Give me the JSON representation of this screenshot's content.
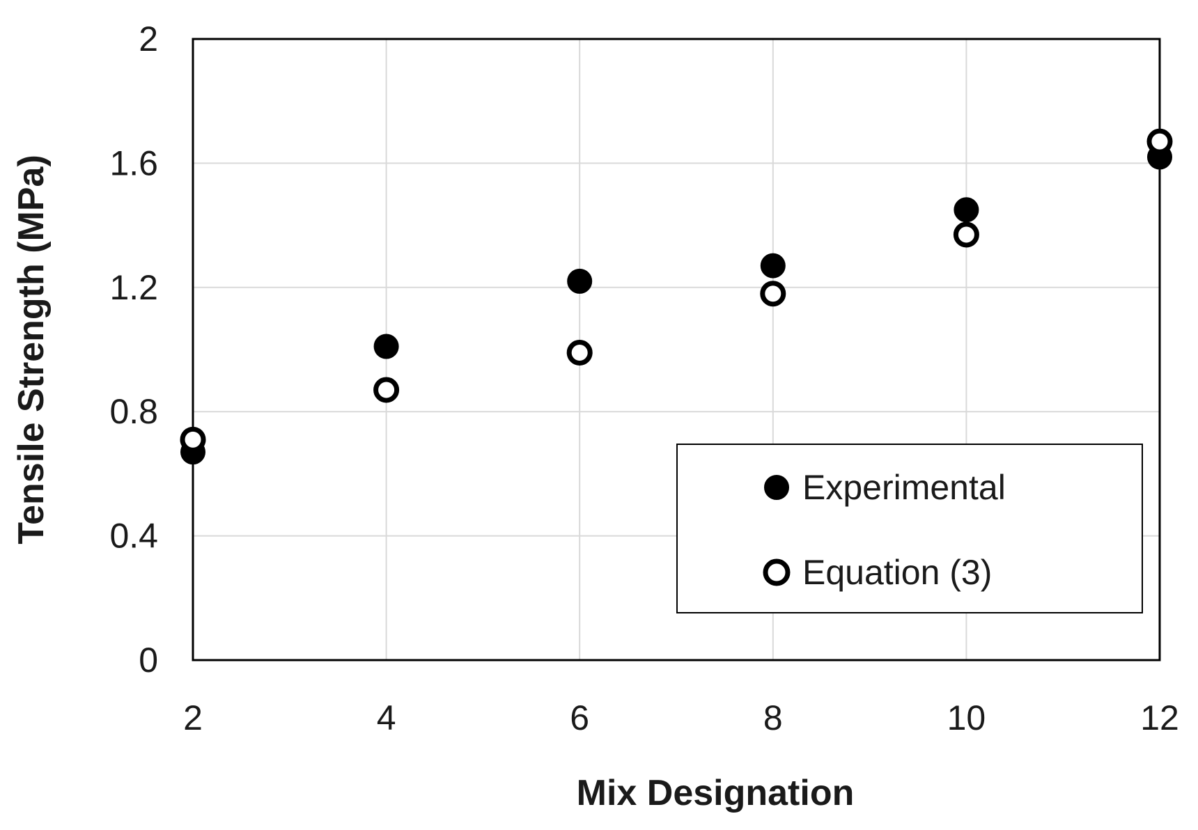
{
  "chart_data": {
    "type": "scatter",
    "title": "",
    "xlabel": "Mix Designation",
    "ylabel": "Tensile Strength (MPa)",
    "xlim": [
      2,
      12
    ],
    "ylim": [
      0,
      2
    ],
    "xticks": [
      "2",
      "4",
      "6",
      "8",
      "10",
      "12"
    ],
    "yticks": [
      "0",
      "0.4",
      "0.8",
      "1.2",
      "1.6",
      "2"
    ],
    "grid": true,
    "legend_position": "bottom-right",
    "x": [
      2,
      4,
      6,
      8,
      10,
      12
    ],
    "series": [
      {
        "name": "Experimental",
        "marker": "filled-circle",
        "color": "#000000",
        "values": [
          0.67,
          1.01,
          1.22,
          1.27,
          1.45,
          1.62
        ]
      },
      {
        "name": "Equation (3)",
        "marker": "open-circle",
        "color": "#000000",
        "values": [
          0.71,
          0.87,
          0.99,
          1.18,
          1.37,
          1.67
        ]
      }
    ]
  }
}
